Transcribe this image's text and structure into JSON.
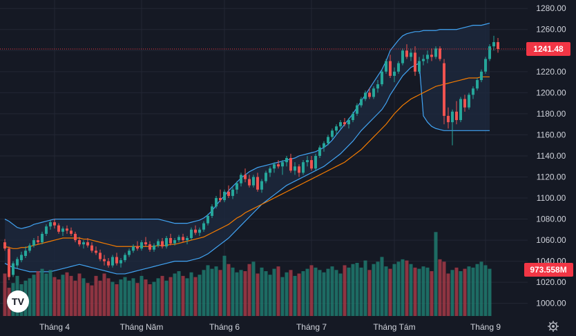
{
  "colors": {
    "background": "#151924",
    "grid": "#232734",
    "up": "#26a69a",
    "down": "#ef5350",
    "vol_up": "#1f7a6e",
    "vol_down": "#a33a47",
    "band": "#42a5f5",
    "basis": "#f57c00",
    "band_fill": "#1e2a3f",
    "price_badge": "#f23645",
    "volume_badge": "#f23645",
    "axis_text": "#d1d4dc"
  },
  "logo": {
    "text": "TV"
  },
  "settings_icon": "gear-icon",
  "chart_data": {
    "type": "candlestick",
    "y_axis": {
      "ticks": [
        "1280.00",
        "1260.00",
        "1240.00",
        "1220.00",
        "1200.00",
        "1180.00",
        "1160.00",
        "1140.00",
        "1120.00",
        "1100.00",
        "1080.00",
        "1060.00",
        "1040.00",
        "1020.00",
        "1000.00"
      ],
      "range": [
        988,
        1288
      ]
    },
    "x_axis": {
      "labels": [
        "Tháng 4",
        "Tháng Năm",
        "Tháng 6",
        "Tháng 7",
        "Tháng Tám",
        "Tháng 9"
      ],
      "label_index": [
        12,
        33,
        53,
        74,
        94,
        116
      ]
    },
    "last_price": {
      "value": 1241.48,
      "label": "1241.48"
    },
    "last_volume": {
      "label": "973.558M"
    },
    "volume_range_max": 1065,
    "candles": [
      [
        1058,
        1061,
        1050,
        1052
      ],
      [
        1052,
        1054,
        1022,
        1025
      ],
      [
        1027,
        1040,
        1025,
        1038
      ],
      [
        1036,
        1044,
        1033,
        1042
      ],
      [
        1041,
        1049,
        1039,
        1046
      ],
      [
        1045,
        1054,
        1043,
        1050
      ],
      [
        1050,
        1057,
        1048,
        1055
      ],
      [
        1055,
        1062,
        1053,
        1060
      ],
      [
        1060,
        1064,
        1056,
        1058
      ],
      [
        1058,
        1068,
        1056,
        1066
      ],
      [
        1066,
        1075,
        1064,
        1073
      ],
      [
        1073,
        1079,
        1070,
        1077
      ],
      [
        1077,
        1080,
        1071,
        1074
      ],
      [
        1074,
        1076,
        1066,
        1068
      ],
      [
        1068,
        1073,
        1064,
        1071
      ],
      [
        1071,
        1074,
        1066,
        1069
      ],
      [
        1069,
        1072,
        1064,
        1066
      ],
      [
        1066,
        1068,
        1058,
        1060
      ],
      [
        1060,
        1063,
        1054,
        1056
      ],
      [
        1056,
        1060,
        1052,
        1058
      ],
      [
        1058,
        1062,
        1053,
        1055
      ],
      [
        1055,
        1058,
        1048,
        1050
      ],
      [
        1050,
        1054,
        1046,
        1048
      ],
      [
        1048,
        1051,
        1040,
        1042
      ],
      [
        1042,
        1046,
        1036,
        1040
      ],
      [
        1040,
        1043,
        1034,
        1036
      ],
      [
        1036,
        1046,
        1034,
        1044
      ],
      [
        1044,
        1048,
        1036,
        1038
      ],
      [
        1038,
        1043,
        1034,
        1041
      ],
      [
        1041,
        1048,
        1039,
        1046
      ],
      [
        1046,
        1052,
        1044,
        1050
      ],
      [
        1050,
        1056,
        1048,
        1054
      ],
      [
        1054,
        1059,
        1050,
        1052
      ],
      [
        1052,
        1060,
        1050,
        1058
      ],
      [
        1058,
        1063,
        1054,
        1056
      ],
      [
        1056,
        1059,
        1049,
        1051
      ],
      [
        1051,
        1057,
        1049,
        1055
      ],
      [
        1055,
        1061,
        1053,
        1059
      ],
      [
        1059,
        1062,
        1052,
        1054
      ],
      [
        1054,
        1064,
        1052,
        1062
      ],
      [
        1062,
        1066,
        1055,
        1057
      ],
      [
        1057,
        1062,
        1055,
        1060
      ],
      [
        1060,
        1065,
        1058,
        1063
      ],
      [
        1063,
        1066,
        1058,
        1060
      ],
      [
        1060,
        1064,
        1056,
        1062
      ],
      [
        1062,
        1072,
        1060,
        1070
      ],
      [
        1070,
        1074,
        1065,
        1067
      ],
      [
        1067,
        1072,
        1064,
        1070
      ],
      [
        1070,
        1078,
        1068,
        1076
      ],
      [
        1076,
        1085,
        1074,
        1083
      ],
      [
        1083,
        1094,
        1081,
        1092
      ],
      [
        1092,
        1102,
        1090,
        1100
      ],
      [
        1100,
        1108,
        1096,
        1098
      ],
      [
        1098,
        1108,
        1096,
        1106
      ],
      [
        1106,
        1112,
        1100,
        1102
      ],
      [
        1102,
        1110,
        1099,
        1108
      ],
      [
        1108,
        1116,
        1104,
        1114
      ],
      [
        1114,
        1124,
        1111,
        1122
      ],
      [
        1122,
        1128,
        1115,
        1118
      ],
      [
        1118,
        1122,
        1110,
        1112
      ],
      [
        1112,
        1122,
        1110,
        1120
      ],
      [
        1120,
        1124,
        1106,
        1108
      ],
      [
        1108,
        1118,
        1105,
        1116
      ],
      [
        1116,
        1126,
        1114,
        1124
      ],
      [
        1124,
        1130,
        1120,
        1128
      ],
      [
        1128,
        1134,
        1124,
        1132
      ],
      [
        1132,
        1136,
        1128,
        1130
      ],
      [
        1130,
        1136,
        1122,
        1134
      ],
      [
        1134,
        1140,
        1130,
        1138
      ],
      [
        1138,
        1142,
        1124,
        1126
      ],
      [
        1126,
        1134,
        1122,
        1130
      ],
      [
        1130,
        1132,
        1120,
        1124
      ],
      [
        1124,
        1136,
        1122,
        1134
      ],
      [
        1134,
        1140,
        1130,
        1136
      ],
      [
        1136,
        1140,
        1126,
        1128
      ],
      [
        1128,
        1142,
        1126,
        1140
      ],
      [
        1140,
        1150,
        1138,
        1148
      ],
      [
        1148,
        1154,
        1144,
        1152
      ],
      [
        1152,
        1160,
        1150,
        1158
      ],
      [
        1158,
        1166,
        1156,
        1164
      ],
      [
        1164,
        1170,
        1160,
        1168
      ],
      [
        1168,
        1174,
        1166,
        1172
      ],
      [
        1172,
        1176,
        1168,
        1170
      ],
      [
        1170,
        1176,
        1166,
        1174
      ],
      [
        1174,
        1182,
        1172,
        1180
      ],
      [
        1180,
        1190,
        1178,
        1188
      ],
      [
        1188,
        1196,
        1186,
        1194
      ],
      [
        1194,
        1202,
        1192,
        1200
      ],
      [
        1200,
        1204,
        1194,
        1196
      ],
      [
        1196,
        1206,
        1194,
        1204
      ],
      [
        1204,
        1212,
        1200,
        1208
      ],
      [
        1208,
        1222,
        1206,
        1220
      ],
      [
        1220,
        1232,
        1218,
        1230
      ],
      [
        1230,
        1236,
        1214,
        1216
      ],
      [
        1216,
        1224,
        1210,
        1220
      ],
      [
        1220,
        1230,
        1218,
        1228
      ],
      [
        1228,
        1242,
        1226,
        1240
      ],
      [
        1240,
        1246,
        1232,
        1234
      ],
      [
        1234,
        1242,
        1230,
        1238
      ],
      [
        1238,
        1244,
        1216,
        1220
      ],
      [
        1220,
        1234,
        1218,
        1230
      ],
      [
        1230,
        1236,
        1226,
        1232
      ],
      [
        1232,
        1240,
        1228,
        1236
      ],
      [
        1236,
        1242,
        1230,
        1234
      ],
      [
        1234,
        1244,
        1232,
        1242
      ],
      [
        1242,
        1244,
        1230,
        1232
      ],
      [
        1228,
        1232,
        1170,
        1178
      ],
      [
        1178,
        1186,
        1166,
        1172
      ],
      [
        1172,
        1184,
        1150,
        1182
      ],
      [
        1182,
        1192,
        1170,
        1174
      ],
      [
        1174,
        1196,
        1172,
        1194
      ],
      [
        1194,
        1198,
        1182,
        1186
      ],
      [
        1186,
        1200,
        1184,
        1198
      ],
      [
        1198,
        1206,
        1194,
        1204
      ],
      [
        1204,
        1214,
        1202,
        1212
      ],
      [
        1212,
        1222,
        1210,
        1220
      ],
      [
        1220,
        1234,
        1218,
        1232
      ],
      [
        1232,
        1246,
        1230,
        1244
      ],
      [
        1244,
        1254,
        1240,
        1248
      ],
      [
        1248,
        1252,
        1238,
        1241.48
      ]
    ],
    "volumes": [
      1030,
      1018,
      1022,
      1028,
      1021,
      1024,
      1026,
      1029,
      1032,
      1034,
      1030,
      1033,
      1027,
      1025,
      1029,
      1031,
      1028,
      1024,
      1030,
      1026,
      1022,
      1020,
      1028,
      1024,
      1030,
      1026,
      1023,
      1021,
      1025,
      1027,
      1024,
      1026,
      1022,
      1028,
      1025,
      1021,
      1023,
      1026,
      1028,
      1024,
      1027,
      1030,
      1032,
      1028,
      1026,
      1031,
      1027,
      1029,
      1033,
      1037,
      1034,
      1036,
      1033,
      1045,
      1038,
      1035,
      1031,
      1033,
      1032,
      1038,
      1040,
      1030,
      1035,
      1032,
      1029,
      1034,
      1036,
      1027,
      1031,
      1033,
      1028,
      1030,
      1032,
      1034,
      1037,
      1035,
      1033,
      1031,
      1034,
      1036,
      1033,
      1030,
      1037,
      1035,
      1038,
      1039,
      1035,
      1041,
      1033,
      1038,
      1040,
      1044,
      1036,
      1034,
      1038,
      1040,
      1042,
      1041,
      1038,
      1035,
      1034,
      1036,
      1035,
      1032,
      1065,
      1042,
      1040,
      1030,
      1033,
      1035,
      1032,
      1034,
      1036,
      1035,
      1038,
      1040,
      1037,
      1034
    ],
    "bollinger": {
      "upper": [
        1080,
        1078,
        1075,
        1072,
        1071,
        1072,
        1073,
        1075,
        1076,
        1077,
        1078,
        1079,
        1080,
        1080,
        1080,
        1080,
        1080,
        1080,
        1080,
        1080,
        1080,
        1080,
        1080,
        1080,
        1080,
        1080,
        1080,
        1080,
        1080,
        1080,
        1080,
        1080,
        1080,
        1080,
        1080,
        1080,
        1080,
        1080,
        1079,
        1078,
        1077,
        1076,
        1076,
        1076,
        1076,
        1077,
        1078,
        1079,
        1081,
        1084,
        1088,
        1093,
        1098,
        1102,
        1107,
        1111,
        1115,
        1119,
        1122,
        1125,
        1127,
        1129,
        1130,
        1131,
        1132,
        1133,
        1134,
        1135,
        1136,
        1137,
        1138,
        1140,
        1141,
        1142,
        1143,
        1144,
        1146,
        1148,
        1151,
        1155,
        1160,
        1165,
        1170,
        1175,
        1180,
        1186,
        1192,
        1198,
        1204,
        1210,
        1216,
        1222,
        1230,
        1240,
        1245,
        1250,
        1254,
        1256,
        1257,
        1258,
        1258,
        1259,
        1259,
        1259,
        1259,
        1260,
        1260,
        1260,
        1260,
        1260,
        1261,
        1262,
        1263,
        1264,
        1264,
        1264,
        1265,
        1266
      ],
      "basis": [
        1054,
        1053,
        1052,
        1052,
        1053,
        1053,
        1054,
        1055,
        1056,
        1057,
        1058,
        1059,
        1060,
        1061,
        1062,
        1062,
        1062,
        1062,
        1062,
        1061,
        1061,
        1060,
        1059,
        1058,
        1057,
        1056,
        1055,
        1054,
        1054,
        1054,
        1054,
        1054,
        1054,
        1054,
        1054,
        1054,
        1054,
        1055,
        1055,
        1055,
        1056,
        1056,
        1057,
        1058,
        1059,
        1060,
        1061,
        1062,
        1063,
        1065,
        1067,
        1069,
        1071,
        1073,
        1075,
        1078,
        1081,
        1083,
        1086,
        1088,
        1090,
        1092,
        1094,
        1096,
        1098,
        1100,
        1102,
        1104,
        1106,
        1108,
        1110,
        1112,
        1114,
        1116,
        1118,
        1120,
        1122,
        1124,
        1126,
        1128,
        1130,
        1132,
        1134,
        1137,
        1140,
        1143,
        1146,
        1150,
        1154,
        1158,
        1162,
        1166,
        1170,
        1175,
        1180,
        1184,
        1188,
        1191,
        1194,
        1196,
        1198,
        1200,
        1202,
        1204,
        1206,
        1207,
        1208,
        1209,
        1210,
        1211,
        1212,
        1213,
        1214,
        1214,
        1214,
        1215,
        1215,
        1215
      ],
      "lower": [
        1038,
        1036,
        1034,
        1033,
        1032,
        1031,
        1030,
        1030,
        1030,
        1030,
        1030,
        1030,
        1031,
        1032,
        1033,
        1034,
        1035,
        1036,
        1037,
        1036,
        1035,
        1034,
        1033,
        1032,
        1031,
        1030,
        1029,
        1028,
        1028,
        1028,
        1029,
        1030,
        1031,
        1032,
        1033,
        1034,
        1035,
        1036,
        1037,
        1038,
        1039,
        1040,
        1040,
        1040,
        1040,
        1041,
        1042,
        1043,
        1045,
        1047,
        1050,
        1053,
        1056,
        1059,
        1062,
        1066,
        1070,
        1074,
        1078,
        1082,
        1086,
        1090,
        1094,
        1097,
        1100,
        1103,
        1106,
        1109,
        1112,
        1114,
        1116,
        1118,
        1120,
        1122,
        1124,
        1126,
        1128,
        1130,
        1133,
        1136,
        1139,
        1142,
        1146,
        1150,
        1154,
        1159,
        1164,
        1168,
        1172,
        1176,
        1180,
        1184,
        1190,
        1198,
        1204,
        1210,
        1216,
        1220,
        1224,
        1226,
        1228,
        1178,
        1172,
        1168,
        1166,
        1165,
        1164,
        1164,
        1164,
        1164,
        1164,
        1164,
        1164,
        1164,
        1164,
        1164,
        1164,
        1164
      ]
    }
  }
}
